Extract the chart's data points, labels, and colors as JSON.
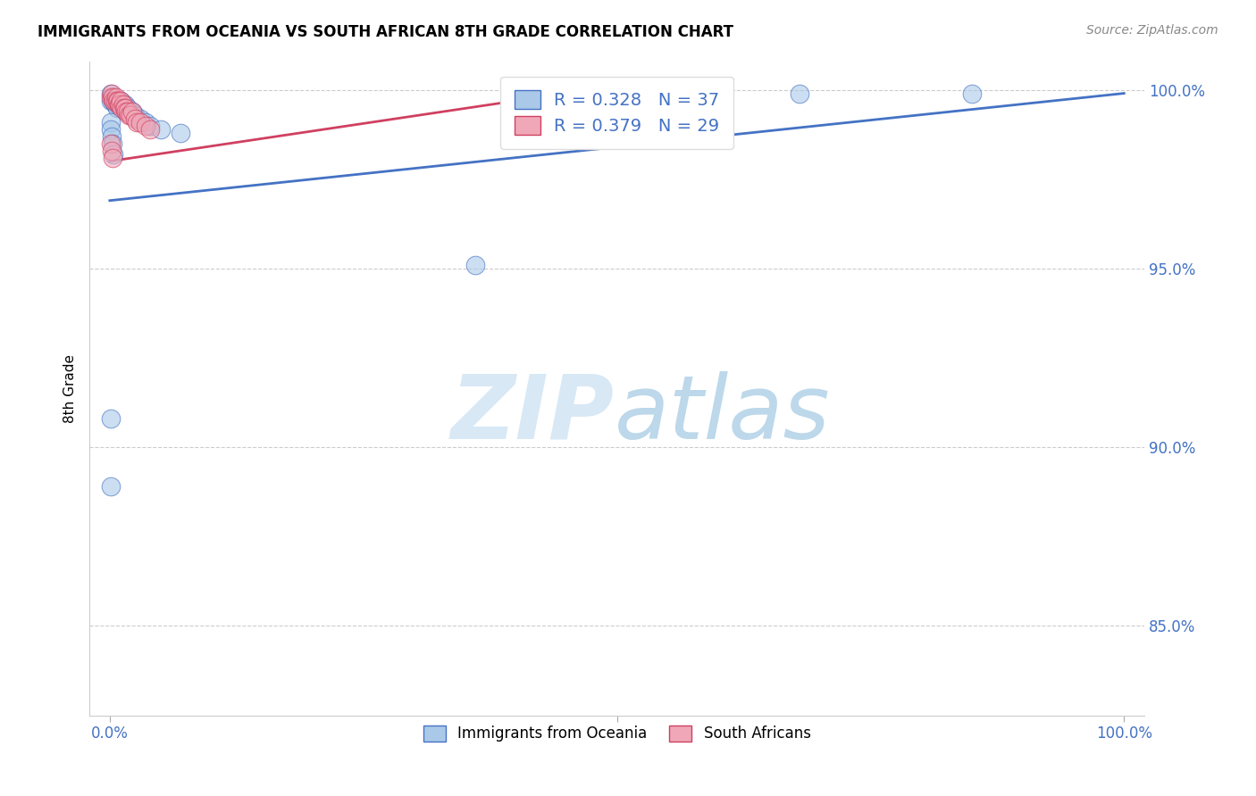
{
  "title": "IMMIGRANTS FROM OCEANIA VS SOUTH AFRICAN 8TH GRADE CORRELATION CHART",
  "source": "Source: ZipAtlas.com",
  "ylabel": "8th Grade",
  "ytick_labels": [
    "85.0%",
    "90.0%",
    "95.0%",
    "100.0%"
  ],
  "ytick_values": [
    0.85,
    0.9,
    0.95,
    1.0
  ],
  "legend_blue_label": "R = 0.328   N = 37",
  "legend_pink_label": "R = 0.379   N = 29",
  "legend_bottom_blue": "Immigrants from Oceania",
  "legend_bottom_pink": "South Africans",
  "blue_color": "#aac8e8",
  "pink_color": "#f0a8b8",
  "trendline_blue": "#4472c4",
  "trendline_pink": "#d04060",
  "blue_scatter_x": [
    0.001,
    0.001,
    0.002,
    0.003,
    0.004,
    0.005,
    0.006,
    0.007,
    0.008,
    0.009,
    0.01,
    0.011,
    0.012,
    0.013,
    0.014,
    0.015,
    0.016,
    0.018,
    0.02,
    0.022,
    0.025,
    0.027,
    0.03,
    0.035,
    0.04,
    0.05,
    0.07,
    0.001,
    0.001,
    0.002,
    0.003,
    0.004,
    0.36,
    0.68,
    0.85,
    0.001,
    0.001
  ],
  "blue_scatter_y": [
    0.999,
    0.997,
    0.998,
    0.997,
    0.998,
    0.996,
    0.997,
    0.995,
    0.996,
    0.997,
    0.996,
    0.997,
    0.995,
    0.996,
    0.995,
    0.996,
    0.994,
    0.995,
    0.994,
    0.994,
    0.993,
    0.992,
    0.992,
    0.991,
    0.99,
    0.989,
    0.988,
    0.991,
    0.989,
    0.987,
    0.985,
    0.982,
    0.951,
    0.999,
    0.999,
    0.908,
    0.889
  ],
  "pink_scatter_x": [
    0.001,
    0.002,
    0.003,
    0.004,
    0.005,
    0.006,
    0.007,
    0.008,
    0.009,
    0.01,
    0.011,
    0.012,
    0.013,
    0.014,
    0.015,
    0.016,
    0.018,
    0.019,
    0.02,
    0.022,
    0.025,
    0.027,
    0.03,
    0.035,
    0.04,
    0.001,
    0.002,
    0.003,
    0.42
  ],
  "pink_scatter_y": [
    0.998,
    0.999,
    0.998,
    0.997,
    0.997,
    0.998,
    0.997,
    0.997,
    0.996,
    0.996,
    0.997,
    0.995,
    0.996,
    0.995,
    0.995,
    0.994,
    0.994,
    0.993,
    0.993,
    0.994,
    0.992,
    0.991,
    0.991,
    0.99,
    0.989,
    0.985,
    0.983,
    0.981,
    0.998
  ],
  "trendline_blue_x0": 0.0,
  "trendline_blue_x1": 1.0,
  "trendline_blue_y0": 0.969,
  "trendline_blue_y1": 0.999,
  "trendline_pink_x0": 0.0,
  "trendline_pink_x1": 0.45,
  "trendline_pink_y0": 0.98,
  "trendline_pink_y1": 0.999,
  "xmin": -0.02,
  "xmax": 1.02,
  "ymin": 0.825,
  "ymax": 1.008
}
